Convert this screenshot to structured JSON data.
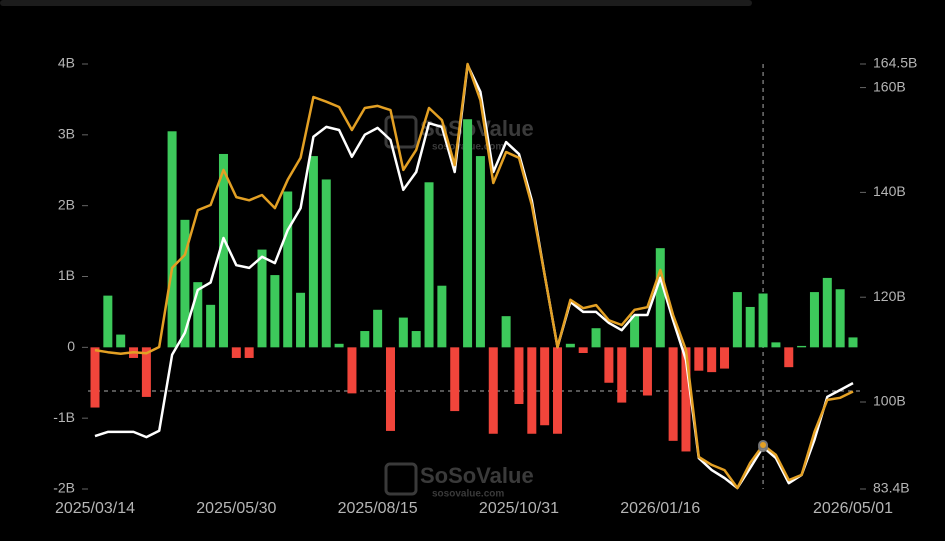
{
  "chart_data": {
    "type": "bar",
    "watermark": [
      "SoSoValue",
      "sosovalue.com"
    ],
    "categories": [
      "2025/03/14",
      null,
      null,
      null,
      null,
      null,
      null,
      null,
      null,
      null,
      null,
      "2025/05/30",
      null,
      null,
      null,
      null,
      null,
      null,
      null,
      null,
      null,
      null,
      "2025/08/15",
      null,
      null,
      null,
      null,
      null,
      null,
      null,
      null,
      null,
      null,
      "2025/10/31",
      null,
      null,
      null,
      null,
      null,
      null,
      null,
      null,
      null,
      null,
      "2026/01/16",
      null,
      null,
      null,
      null,
      null,
      null,
      null,
      null,
      null,
      null,
      null,
      null,
      null,
      null,
      "2026/05/01"
    ],
    "ylim": [
      -2,
      4
    ],
    "yticks": [
      {
        "value": -2,
        "label": "-2B"
      },
      {
        "value": -1,
        "label": "-1B"
      },
      0,
      {
        "value": 1,
        "label": "1B"
      },
      {
        "value": 2,
        "label": "2B"
      },
      {
        "value": 3,
        "label": "3B"
      },
      {
        "value": 4,
        "label": "4B"
      }
    ],
    "y2lim": [
      83.4,
      164.5
    ],
    "y2ticks": [
      {
        "value": 83.4,
        "label": "83.4B"
      },
      {
        "value": 100,
        "label": "100B"
      },
      {
        "value": 120,
        "label": "120B"
      },
      {
        "value": 140,
        "label": "140B"
      },
      {
        "value": 160,
        "label": "160B"
      },
      {
        "value": 164.5,
        "label": "164.5B"
      }
    ],
    "grid": false,
    "series": [
      {
        "type": "bar",
        "positive_color": "#3dc95b",
        "negative_color": "#f1453b",
        "values": [
          -0.85,
          0.73,
          0.18,
          -0.15,
          -0.7,
          0,
          3.05,
          1.8,
          0.92,
          0.6,
          2.73,
          -0.15,
          -0.15,
          1.38,
          1.02,
          2.2,
          0.77,
          2.7,
          2.37,
          0.05,
          -0.65,
          0.23,
          0.53,
          -1.18,
          0.42,
          0.23,
          2.33,
          0.87,
          -0.9,
          3.22,
          2.7,
          -1.22,
          0.44,
          -0.8,
          -1.22,
          -1.1,
          -1.22,
          0.05,
          -0.08,
          0.27,
          -0.5,
          -0.78,
          0.45,
          -0.68,
          1.4,
          -1.32,
          -1.47,
          -0.33,
          -0.35,
          -0.3,
          0.78,
          0.57,
          0.76,
          0.07,
          -0.28,
          0.02,
          0.78,
          0.98,
          0.82,
          0.14
        ]
      },
      {
        "type": "line",
        "axis": "y2",
        "color": "#ffffff",
        "values": [
          93.5,
          94.3,
          94.3,
          94.3,
          93.3,
          94.5,
          109.0,
          113.2,
          121.4,
          122.8,
          131.3,
          126.1,
          125.6,
          127.7,
          126.5,
          132.8,
          137.0,
          150.6,
          152.5,
          151.9,
          146.8,
          151.0,
          152.3,
          150.0,
          140.5,
          143.9,
          153.2,
          152.5,
          143.9,
          164.3,
          159.2,
          143.9,
          149.6,
          147.3,
          138.5,
          124.2,
          110.5,
          119.1,
          117.2,
          117.2,
          115.1,
          113.7,
          116.6,
          116.6,
          123.7,
          115.6,
          108.0,
          89.3,
          87.0,
          85.5,
          83.6,
          87.4,
          91.4,
          89.3,
          84.5,
          86.1,
          92.8,
          101.0,
          102.3,
          103.6
        ]
      },
      {
        "type": "line",
        "axis": "y2",
        "color": "#e3a024",
        "values": [
          109.9,
          109.5,
          109.2,
          109.5,
          109.3,
          110.5,
          125.6,
          128.1,
          136.6,
          137.6,
          144.3,
          139.1,
          138.5,
          139.5,
          137.0,
          142.4,
          146.6,
          158.2,
          157.3,
          156.3,
          151.9,
          156.1,
          156.5,
          155.7,
          144.3,
          148.1,
          156.1,
          153.8,
          145.2,
          164.5,
          157.6,
          141.8,
          147.7,
          146.6,
          137.6,
          124.2,
          110.5,
          119.5,
          117.9,
          118.5,
          115.6,
          114.7,
          117.6,
          118.1,
          125.2,
          116.6,
          109.9,
          89.5,
          88.0,
          87.0,
          83.6,
          88.4,
          91.8,
          89.9,
          85.1,
          86.1,
          94.3,
          100.4,
          100.8,
          102.0
        ]
      }
    ]
  }
}
